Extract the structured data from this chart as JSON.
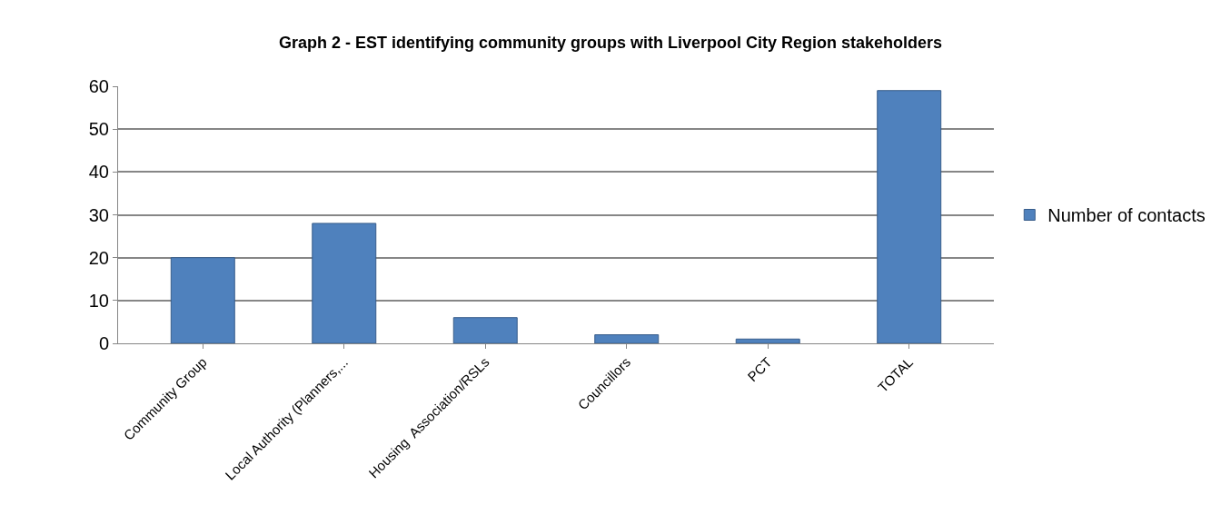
{
  "chart_data": {
    "type": "bar",
    "title": "Graph 2 - EST identifying community groups with Liverpool City Region stakeholders",
    "categories": [
      "Community Group",
      "Local Authority (Planners,...",
      "Housing  Association/RSLs",
      "Councillors",
      "PCT",
      "TOTAL"
    ],
    "series": [
      {
        "name": "Number of contacts",
        "color": "#4f81bd",
        "values": [
          20,
          28,
          6,
          2,
          1,
          59
        ]
      }
    ],
    "ylim": [
      0,
      60
    ],
    "yticks": [
      0,
      10,
      20,
      30,
      40,
      50,
      60
    ],
    "grid": "y",
    "legend": "right"
  }
}
